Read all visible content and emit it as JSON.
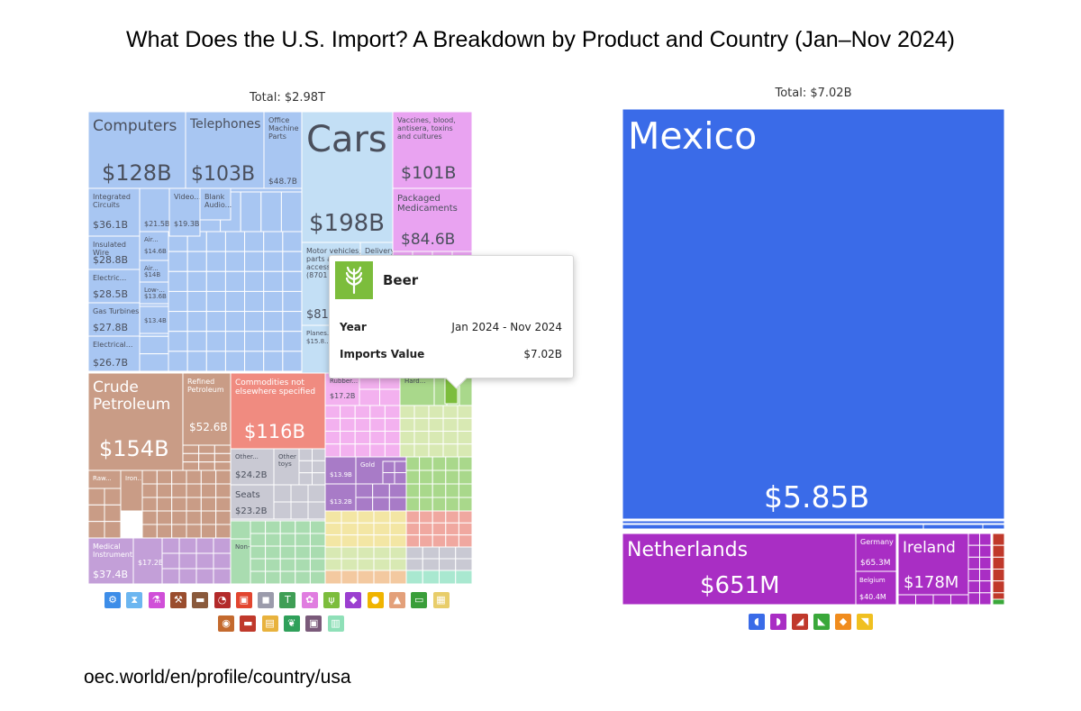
{
  "title": "What Does the U.S. Import? A Breakdown by Product and Country (Jan–Nov 2024)",
  "source": "oec.world/en/profile/country/usa",
  "colors": {
    "machines": "#a8c6f2",
    "transport": "#c3dff5",
    "chemicals": "#e9a3f1",
    "mineral": "#c99c86",
    "misc": "#f08b80",
    "foodstuffs": "#a9d88b",
    "metals": "#c9c9d3",
    "textiles": "#a9dcb0",
    "precious": "#a87bc7",
    "plastics": "#f3b1ef",
    "stone": "#f3e6a4",
    "animal": "#d8e9b3",
    "instruments": "#c39fd8",
    "north_america": "#3a6be8",
    "europe": "#a92ec4",
    "asia": "#c0392b"
  },
  "chart_data": [
    {
      "type": "treemap",
      "name": "products",
      "total_label": "Total: $2.98T",
      "items": [
        {
          "name": "Computers",
          "value_label": "$128B",
          "value": 128,
          "group": "machines"
        },
        {
          "name": "Telephones",
          "value_label": "$103B",
          "value": 103,
          "group": "machines"
        },
        {
          "name": "Office Machine Parts",
          "value_label": "$48.7B",
          "value": 48.7,
          "group": "machines"
        },
        {
          "name": "Integrated Circuits",
          "value_label": "$36.1B",
          "value": 36.1,
          "group": "machines"
        },
        {
          "name": "",
          "value_label": "$21.5B",
          "value": 21.5,
          "group": "machines"
        },
        {
          "name": "Video...",
          "value_label": "$19.3B",
          "value": 19.3,
          "group": "machines"
        },
        {
          "name": "Blank Audio...",
          "value_label": "",
          "group": "machines"
        },
        {
          "name": "Insulated Wire",
          "value_label": "$28.8B",
          "value": 28.8,
          "group": "machines"
        },
        {
          "name": "Air...",
          "value_label": "$14.6B",
          "value": 14.6,
          "group": "machines"
        },
        {
          "name": "Electric...",
          "value_label": "$28.5B",
          "value": 28.5,
          "group": "machines"
        },
        {
          "name": "Air...",
          "value_label": "$14B",
          "value": 14,
          "group": "machines"
        },
        {
          "name": "Low-...",
          "value_label": "$13.6B",
          "value": 13.6,
          "group": "machines"
        },
        {
          "name": "Gas Turbines",
          "value_label": "$27.8B",
          "value": 27.8,
          "group": "machines"
        },
        {
          "name": "",
          "value_label": "$13.4B",
          "value": 13.4,
          "group": "machines"
        },
        {
          "name": "Electrical...",
          "value_label": "$26.7B",
          "value": 26.7,
          "group": "machines"
        },
        {
          "name": "Cars",
          "value_label": "$198B",
          "value": 198,
          "group": "transport"
        },
        {
          "name": "Motor vehicles; parts a... access... (8701 t...",
          "value_label": "$81...",
          "group": "transport"
        },
        {
          "name": "Delivery",
          "value_label": "",
          "group": "transport"
        },
        {
          "name": "Planes...",
          "value_label": "$15.8...",
          "group": "transport"
        },
        {
          "name": "Vaccines, blood, antisera, toxins and cultures",
          "value_label": "$101B",
          "value": 101,
          "group": "chemicals"
        },
        {
          "name": "Packaged Medicaments",
          "value_label": "$84.6B",
          "value": 84.6,
          "group": "chemicals"
        },
        {
          "name": "Crude Petroleum",
          "value_label": "$154B",
          "value": 154,
          "group": "mineral"
        },
        {
          "name": "Refined Petroleum",
          "value_label": "$52.6B",
          "value": 52.6,
          "group": "mineral"
        },
        {
          "name": "Commodities not elsewhere specified",
          "value_label": "$116B",
          "value": 116,
          "group": "misc"
        },
        {
          "name": "Rubber...",
          "value_label": "$17.2B",
          "value": 17.2,
          "group": "plastics"
        },
        {
          "name": "Hard...",
          "value_label": "",
          "group": "foodstuffs"
        },
        {
          "name": "Other...",
          "value_label": "$24.2B",
          "value": 24.2,
          "group": "metals"
        },
        {
          "name": "Other toys",
          "value_label": "",
          "group": "metals"
        },
        {
          "name": "Seats",
          "value_label": "$23.2B",
          "value": 23.2,
          "group": "metals"
        },
        {
          "name": "",
          "value_label": "$13.9B",
          "value": 13.9,
          "group": "precious"
        },
        {
          "name": "Gold",
          "value_label": "",
          "group": "precious"
        },
        {
          "name": "",
          "value_label": "$13.2B",
          "value": 13.2,
          "group": "precious"
        },
        {
          "name": "Raw...",
          "value_label": "",
          "group": "mineral"
        },
        {
          "name": "Iron...",
          "value_label": "",
          "group": "mineral"
        },
        {
          "name": "Non-...",
          "value_label": "",
          "group": "textiles"
        },
        {
          "name": "Medical Instruments",
          "value_label": "$37.4B",
          "value": 37.4,
          "group": "instruments"
        },
        {
          "name": "",
          "value_label": "$17.2B",
          "value": 17.2,
          "group": "instruments"
        }
      ]
    },
    {
      "type": "treemap",
      "name": "countries",
      "total_label": "Total: $7.02B",
      "items": [
        {
          "name": "Mexico",
          "value_label": "$5.85B",
          "value": 5850,
          "group": "north_america"
        },
        {
          "name": "Netherlands",
          "value_label": "$651M",
          "value": 651,
          "group": "europe"
        },
        {
          "name": "Germany",
          "value_label": "$65.3M",
          "value": 65.3,
          "group": "europe"
        },
        {
          "name": "Belgium",
          "value_label": "$40.4M",
          "value": 40.4,
          "group": "europe"
        },
        {
          "name": "Ireland",
          "value_label": "$178M",
          "value": 178,
          "group": "europe"
        }
      ]
    }
  ],
  "tooltip": {
    "name": "Beer",
    "rows": [
      {
        "key": "Year",
        "value": "Jan 2024 - Nov 2024"
      },
      {
        "key": "Imports Value",
        "value": "$7.02B"
      }
    ]
  },
  "legend_products": [
    {
      "icon": "gear-icon",
      "glyph": "⚙",
      "color": "#3d8de8"
    },
    {
      "icon": "transport-icon",
      "glyph": "⧗",
      "color": "#6cb6f0"
    },
    {
      "icon": "flask-icon",
      "glyph": "⚗",
      "color": "#d04fd8"
    },
    {
      "icon": "pickaxe-icon",
      "glyph": "⚒",
      "color": "#9a4d2e"
    },
    {
      "icon": "anvil-icon",
      "glyph": "▬",
      "color": "#8a5a3c"
    },
    {
      "icon": "gauge-icon",
      "glyph": "◔",
      "color": "#b32a2a"
    },
    {
      "icon": "box-icon",
      "glyph": "▣",
      "color": "#e2452f"
    },
    {
      "icon": "metal-icon",
      "glyph": "◼",
      "color": "#9b9bab"
    },
    {
      "icon": "shirt-icon",
      "glyph": "T",
      "color": "#3f9e55"
    },
    {
      "icon": "plastic-icon",
      "glyph": "✿",
      "color": "#e07de0"
    },
    {
      "icon": "wheat-icon",
      "glyph": "ψ",
      "color": "#7cbd3c"
    },
    {
      "icon": "diamond-icon",
      "glyph": "◆",
      "color": "#9b3fd0"
    },
    {
      "icon": "fruit-icon",
      "glyph": "●",
      "color": "#f0b400"
    },
    {
      "icon": "animal-icon",
      "glyph": "▲",
      "color": "#e3a07a"
    },
    {
      "icon": "vehicle-icon",
      "glyph": "▭",
      "color": "#3a9e3a"
    },
    {
      "icon": "stone-icon",
      "glyph": "▦",
      "color": "#e8cd6a"
    },
    {
      "icon": "hide-icon",
      "glyph": "◉",
      "color": "#c46a2e"
    },
    {
      "icon": "weapon-icon",
      "glyph": "▬",
      "color": "#c0392b"
    },
    {
      "icon": "paper-icon",
      "glyph": "▤",
      "color": "#e8b23d"
    },
    {
      "icon": "leaf-icon",
      "glyph": "❦",
      "color": "#2fa05a"
    },
    {
      "icon": "art-icon",
      "glyph": "▣",
      "color": "#7a5a7a"
    },
    {
      "icon": "footwear-icon",
      "glyph": "▥",
      "color": "#8fe0b8"
    }
  ],
  "legend_regions": [
    {
      "icon": "north-america-icon",
      "glyph": "◖",
      "color": "#3a6be8"
    },
    {
      "icon": "europe-icon",
      "glyph": "◗",
      "color": "#a92ec4"
    },
    {
      "icon": "asia-icon",
      "glyph": "◢",
      "color": "#c0392b"
    },
    {
      "icon": "south-america-icon",
      "glyph": "◣",
      "color": "#3aa83a"
    },
    {
      "icon": "oceania-icon",
      "glyph": "◆",
      "color": "#f08c1e"
    },
    {
      "icon": "africa-icon",
      "glyph": "◥",
      "color": "#f0c020"
    }
  ]
}
